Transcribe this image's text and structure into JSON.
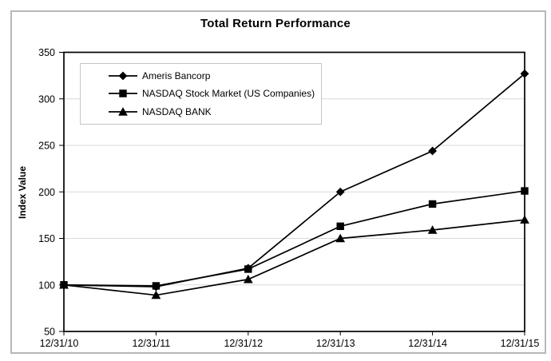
{
  "title": "Total Return Performance",
  "chart_data": {
    "type": "line",
    "title": "Total Return Performance",
    "xlabel": "",
    "ylabel": "Index Value",
    "categories": [
      "12/31/10",
      "12/31/11",
      "12/31/12",
      "12/31/13",
      "12/31/14",
      "12/31/15"
    ],
    "series": [
      {
        "name": "Ameris Bancorp",
        "marker": "diamond",
        "values": [
          100,
          98,
          118,
          200,
          244,
          327
        ]
      },
      {
        "name": "NASDAQ Stock Market (US Companies)",
        "marker": "square",
        "values": [
          100,
          99,
          117,
          163,
          187,
          201
        ]
      },
      {
        "name": "NASDAQ BANK",
        "marker": "triangle",
        "values": [
          100,
          89,
          106,
          150,
          159,
          170
        ]
      }
    ],
    "ylim": [
      50,
      350
    ],
    "yticks": [
      50,
      100,
      150,
      200,
      250,
      300,
      350
    ],
    "grid": true,
    "legend_position": "top-left",
    "colors": {
      "line": "#000000",
      "marker": "#000000",
      "grid": "#d9d9d9",
      "plot_border": "#000000",
      "figure_border": "#b8b8b8",
      "legend_border": "#c6c6c6",
      "background": "#ffffff"
    }
  }
}
